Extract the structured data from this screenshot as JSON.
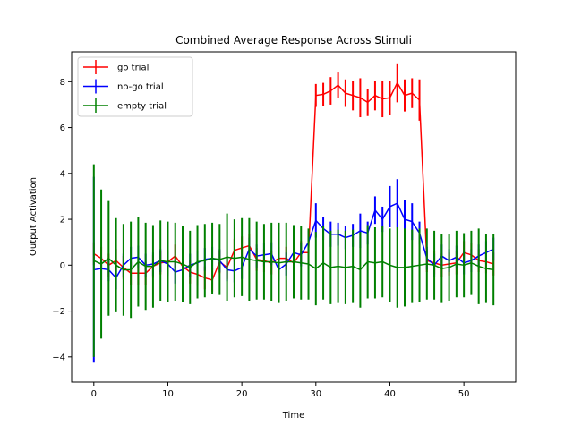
{
  "chart_data": {
    "type": "line",
    "title": "Combined Average Response Across Stimuli",
    "xlabel": "Time",
    "ylabel": "Output Activation",
    "xlim": [
      -3,
      57
    ],
    "ylim": [
      -5.1,
      9.3
    ],
    "xticks": [
      0,
      10,
      20,
      30,
      40,
      50
    ],
    "yticks": [
      -4,
      -2,
      0,
      2,
      4,
      6,
      8
    ],
    "grid": false,
    "legend_position": "top-left",
    "x": [
      0,
      1,
      2,
      3,
      4,
      5,
      6,
      7,
      8,
      9,
      10,
      11,
      12,
      13,
      14,
      15,
      16,
      17,
      18,
      19,
      20,
      21,
      22,
      23,
      24,
      25,
      26,
      27,
      28,
      29,
      30,
      31,
      32,
      33,
      34,
      35,
      36,
      37,
      38,
      39,
      40,
      41,
      42,
      43,
      44,
      45,
      46,
      47,
      48,
      49,
      50,
      51,
      52,
      53,
      54
    ],
    "series": [
      {
        "name": "go trial",
        "color": "#ff0000",
        "values": [
          0.5,
          0.3,
          0.0,
          0.2,
          -0.1,
          -0.35,
          -0.35,
          -0.35,
          -0.05,
          0.1,
          0.15,
          0.4,
          -0.05,
          -0.3,
          -0.4,
          -0.55,
          -0.65,
          0.15,
          -0.1,
          0.65,
          0.75,
          0.85,
          0.25,
          0.2,
          0.1,
          0.3,
          0.3,
          0.1,
          0.55,
          0.55,
          7.4,
          7.45,
          7.6,
          7.85,
          7.5,
          7.4,
          7.3,
          7.1,
          7.4,
          7.25,
          7.3,
          7.95,
          7.4,
          7.5,
          7.2,
          0.2,
          0.1,
          0.0,
          0.05,
          0.1,
          0.55,
          0.45,
          0.2,
          0.15,
          0.05
        ],
        "errors": [
          0.5,
          0.5,
          0.5,
          0.5,
          0.5,
          0.5,
          0.5,
          0.5,
          0.5,
          0.5,
          0.5,
          0.5,
          0.5,
          0.5,
          0.5,
          0.5,
          0.5,
          0.5,
          0.5,
          0.5,
          0.5,
          0.5,
          0.5,
          0.5,
          0.5,
          0.5,
          0.5,
          0.5,
          0.5,
          0.5,
          0.5,
          0.5,
          0.6,
          0.55,
          0.6,
          0.65,
          0.85,
          0.6,
          0.65,
          0.8,
          0.75,
          0.85,
          0.7,
          0.65,
          0.9,
          0.5,
          0.5,
          0.5,
          0.5,
          0.5,
          0.5,
          0.5,
          0.5,
          0.5,
          0.5
        ]
      },
      {
        "name": "no-go trial",
        "color": "#0000ff",
        "values": [
          -0.2,
          -0.15,
          -0.2,
          -0.55,
          0.0,
          0.3,
          0.35,
          0.0,
          0.05,
          0.2,
          0.05,
          -0.3,
          -0.2,
          0.0,
          0.1,
          0.25,
          0.3,
          0.2,
          -0.2,
          -0.25,
          -0.1,
          0.7,
          0.4,
          0.45,
          0.5,
          -0.2,
          0.05,
          0.55,
          0.45,
          1.0,
          1.95,
          1.6,
          1.35,
          1.35,
          1.2,
          1.3,
          1.5,
          1.4,
          2.4,
          2.0,
          2.55,
          2.7,
          2.0,
          1.9,
          1.4,
          0.3,
          0.0,
          0.4,
          0.2,
          0.35,
          0.1,
          0.2,
          0.4,
          0.55,
          0.7
        ],
        "errors": [
          4.05,
          0.5,
          0.5,
          0.5,
          0.5,
          0.5,
          0.5,
          0.5,
          0.5,
          0.5,
          0.5,
          0.5,
          0.5,
          0.5,
          0.5,
          0.5,
          0.5,
          0.5,
          0.5,
          0.5,
          0.5,
          0.5,
          0.5,
          0.5,
          0.5,
          0.5,
          0.5,
          0.5,
          0.5,
          0.5,
          0.75,
          0.5,
          0.55,
          0.5,
          0.5,
          0.5,
          0.75,
          0.5,
          0.6,
          0.55,
          0.9,
          1.05,
          0.85,
          0.8,
          0.5,
          0.5,
          0.5,
          0.5,
          0.5,
          0.5,
          0.5,
          0.5,
          0.5,
          0.5,
          0.5
        ]
      },
      {
        "name": "empty trial",
        "color": "#008000",
        "values": [
          0.2,
          0.05,
          0.3,
          0.0,
          -0.2,
          -0.2,
          0.15,
          -0.05,
          -0.05,
          0.2,
          0.15,
          0.15,
          0.05,
          -0.1,
          0.15,
          0.2,
          0.3,
          0.25,
          0.35,
          0.3,
          0.35,
          0.25,
          0.2,
          0.15,
          0.15,
          0.1,
          0.15,
          0.15,
          0.1,
          0.05,
          -0.15,
          0.1,
          -0.1,
          -0.05,
          -0.1,
          -0.05,
          -0.2,
          0.15,
          0.1,
          0.15,
          0.0,
          -0.1,
          -0.1,
          -0.05,
          0.0,
          0.05,
          0.0,
          -0.15,
          -0.1,
          0.05,
          0.0,
          0.1,
          -0.05,
          -0.15,
          -0.2
        ],
        "errors": [
          4.2,
          3.25,
          2.5,
          2.05,
          2.0,
          2.1,
          1.95,
          1.9,
          1.8,
          1.75,
          1.75,
          1.7,
          1.65,
          1.6,
          1.6,
          1.6,
          1.55,
          1.55,
          1.9,
          1.7,
          1.7,
          1.8,
          1.7,
          1.65,
          1.7,
          1.75,
          1.7,
          1.6,
          1.6,
          1.55,
          1.6,
          1.6,
          1.6,
          1.6,
          1.6,
          1.6,
          1.65,
          1.6,
          1.55,
          1.55,
          1.6,
          1.75,
          1.7,
          1.6,
          1.6,
          1.55,
          1.5,
          1.5,
          1.45,
          1.45,
          1.4,
          1.4,
          1.65,
          1.5,
          1.55
        ]
      }
    ]
  }
}
